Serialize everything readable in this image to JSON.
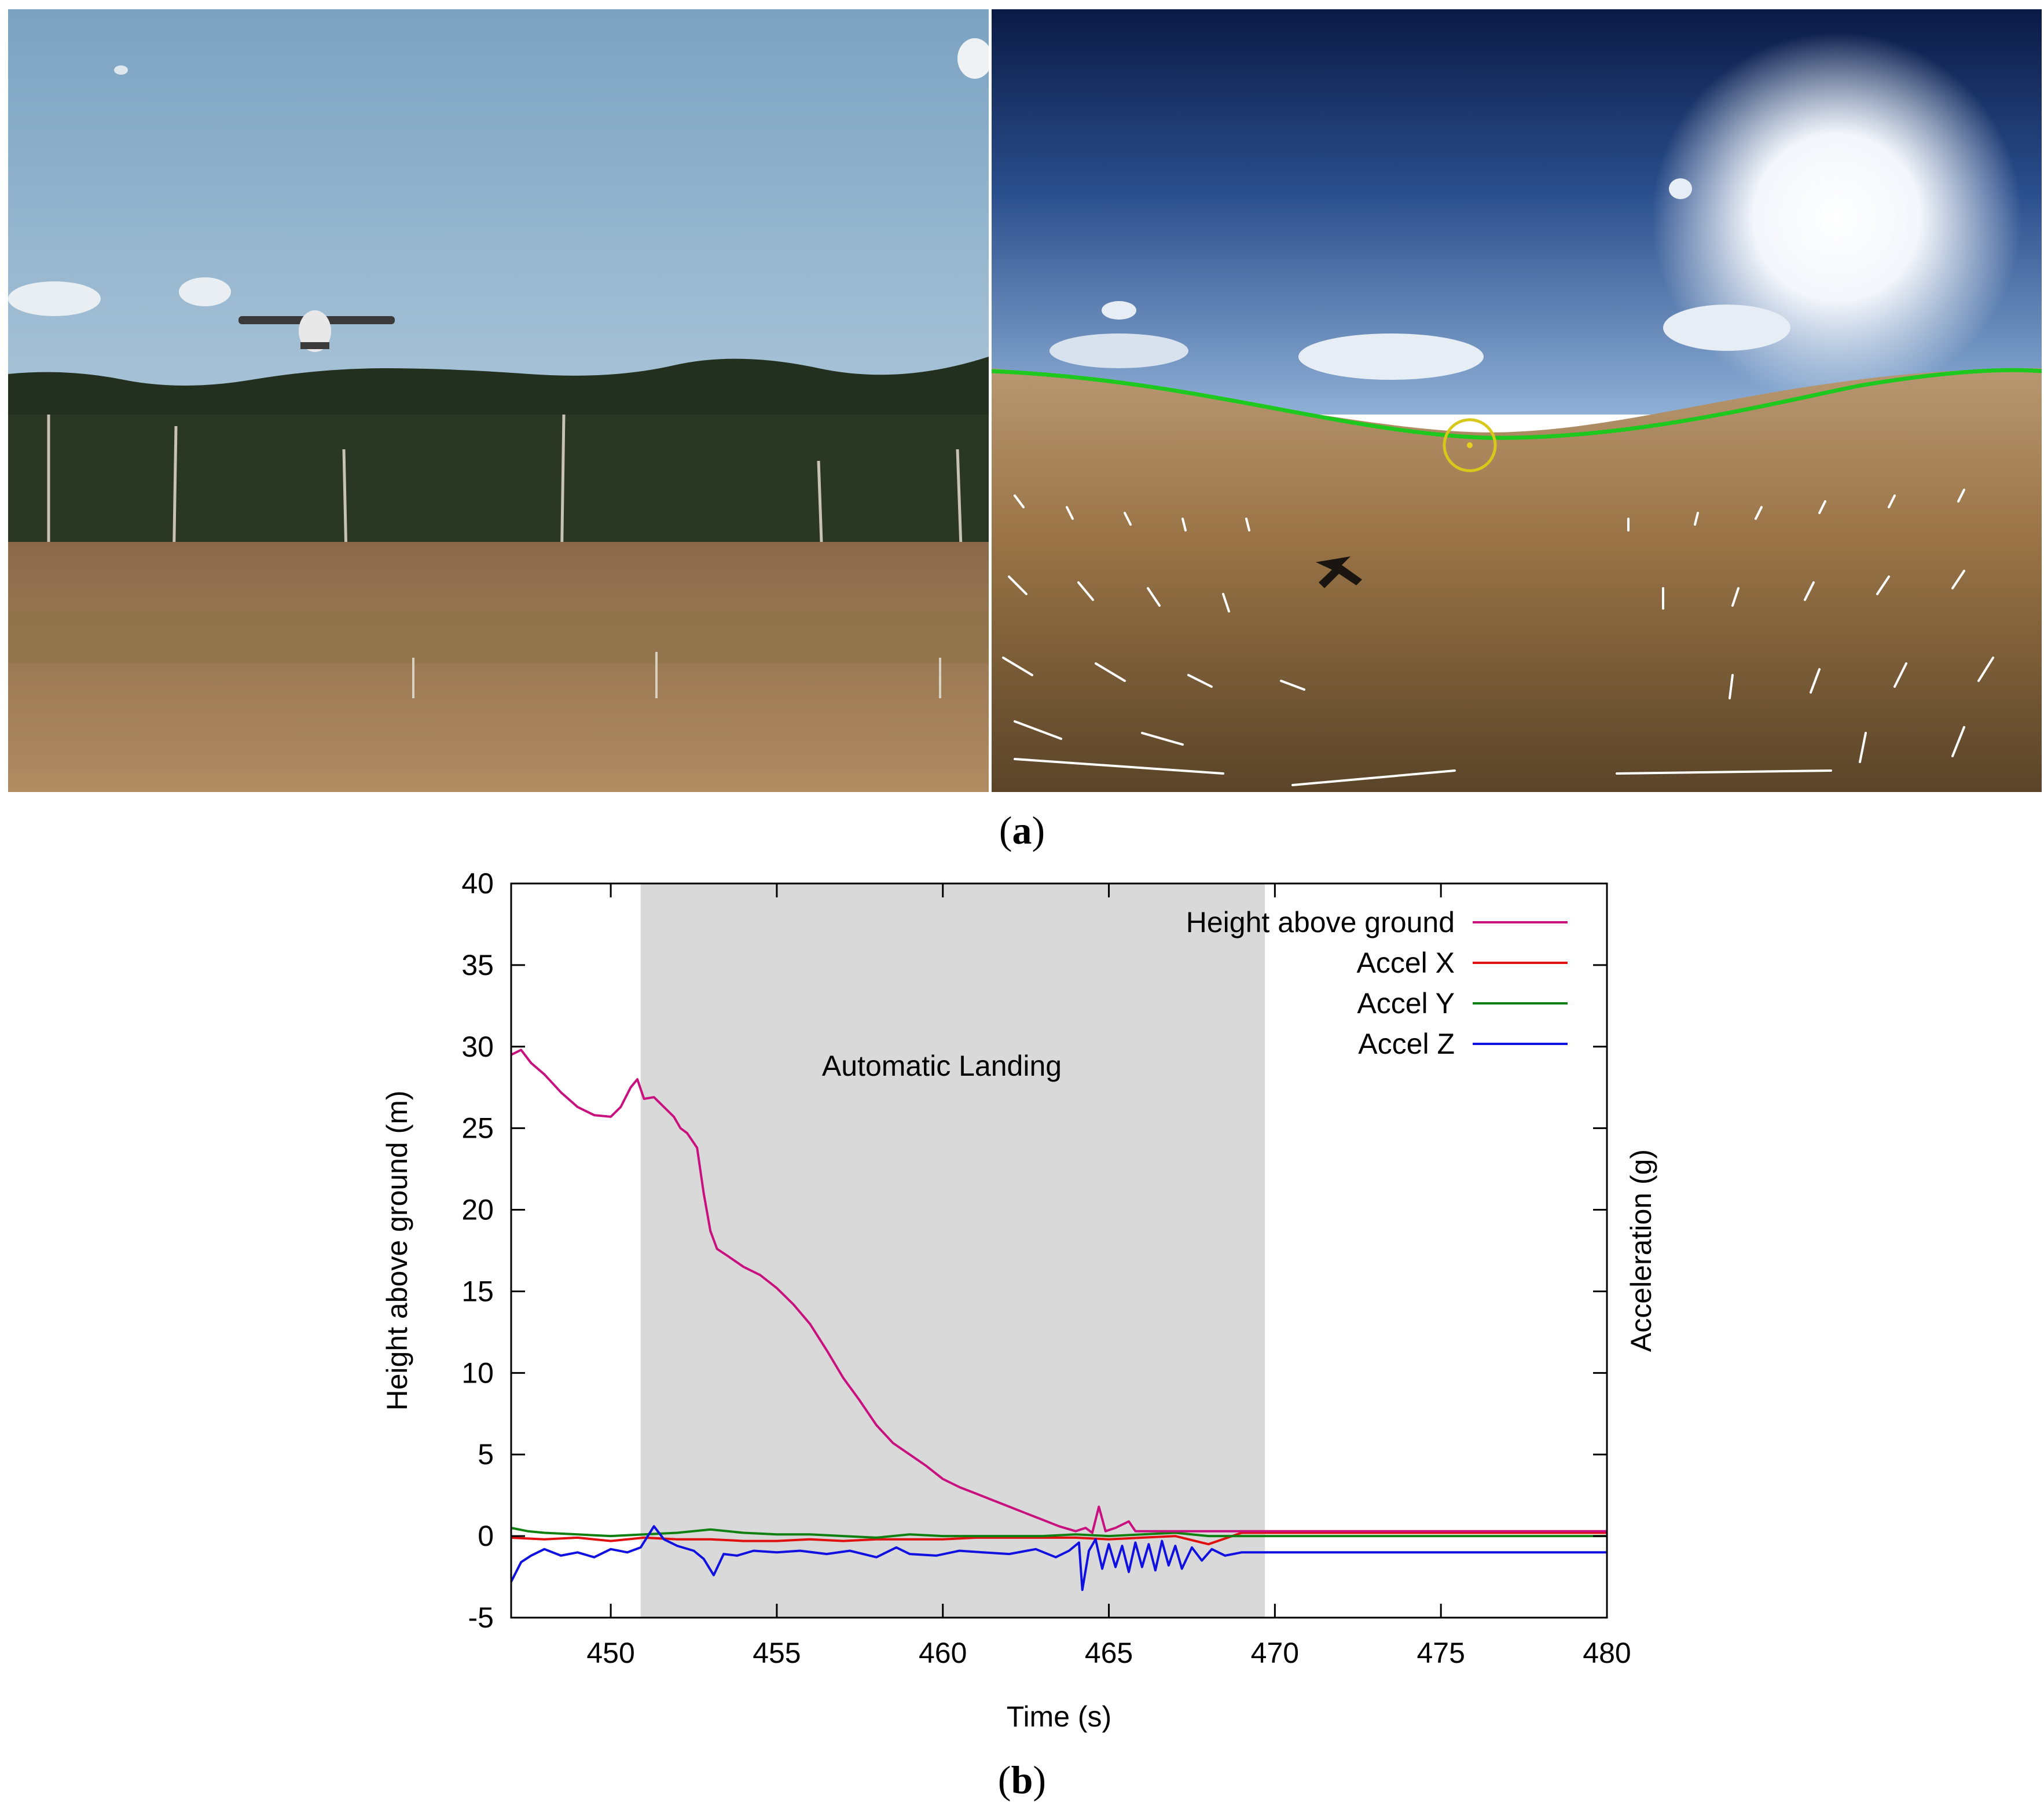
{
  "figure": {
    "panel_a": {
      "label_open": "(",
      "label_letter": "a",
      "label_close": ")",
      "left_photo": "ground-view-aircraft-approach",
      "right_photo": "onboard-omnidirectional-camera-view"
    },
    "panel_b": {
      "label_open": "(",
      "label_letter": "b",
      "label_close": ")"
    }
  },
  "colors": {
    "height": "#c8107e",
    "accel_x": "#e01010",
    "accel_y": "#108010",
    "accel_z": "#1010e0",
    "shade": "#d9d9d9",
    "horizon": "#1ec81e",
    "target_circle": "#d8c81c"
  },
  "chart_data": {
    "type": "line",
    "title": "",
    "xlabel": "Time (s)",
    "ylabel": "Height above ground (m)",
    "y2label": "Acceleration (g)",
    "xlim": [
      447,
      480
    ],
    "ylim": [
      -5,
      40
    ],
    "xticks": [
      450,
      455,
      460,
      465,
      470,
      475,
      480
    ],
    "yticks": [
      -5,
      0,
      5,
      10,
      15,
      20,
      25,
      30,
      35,
      40
    ],
    "legend_position": "top-right",
    "annotation": {
      "text": "Automatic Landing",
      "x_range": [
        450.9,
        469.7
      ]
    },
    "series": [
      {
        "name": "Height above ground",
        "color": "#c8107e",
        "points": [
          [
            447.0,
            29.5
          ],
          [
            447.3,
            29.8
          ],
          [
            447.6,
            29.0
          ],
          [
            448.0,
            28.3
          ],
          [
            448.5,
            27.2
          ],
          [
            449.0,
            26.3
          ],
          [
            449.5,
            25.8
          ],
          [
            450.0,
            25.7
          ],
          [
            450.3,
            26.3
          ],
          [
            450.6,
            27.5
          ],
          [
            450.8,
            28.0
          ],
          [
            451.0,
            26.8
          ],
          [
            451.3,
            26.9
          ],
          [
            451.6,
            26.3
          ],
          [
            451.9,
            25.7
          ],
          [
            452.1,
            25.0
          ],
          [
            452.3,
            24.7
          ],
          [
            452.6,
            23.8
          ],
          [
            452.8,
            21.0
          ],
          [
            453.0,
            18.7
          ],
          [
            453.2,
            17.6
          ],
          [
            453.5,
            17.2
          ],
          [
            454.0,
            16.5
          ],
          [
            454.5,
            16.0
          ],
          [
            455.0,
            15.2
          ],
          [
            455.5,
            14.2
          ],
          [
            456.0,
            13.0
          ],
          [
            456.5,
            11.4
          ],
          [
            457.0,
            9.7
          ],
          [
            457.5,
            8.3
          ],
          [
            458.0,
            6.8
          ],
          [
            458.5,
            5.7
          ],
          [
            459.0,
            5.0
          ],
          [
            459.5,
            4.3
          ],
          [
            460.0,
            3.5
          ],
          [
            460.5,
            3.0
          ],
          [
            461.0,
            2.6
          ],
          [
            461.5,
            2.2
          ],
          [
            462.0,
            1.8
          ],
          [
            462.5,
            1.4
          ],
          [
            463.0,
            1.0
          ],
          [
            463.5,
            0.6
          ],
          [
            464.0,
            0.3
          ],
          [
            464.3,
            0.5
          ],
          [
            464.5,
            0.2
          ],
          [
            464.7,
            1.8
          ],
          [
            464.9,
            0.3
          ],
          [
            465.2,
            0.5
          ],
          [
            465.6,
            0.9
          ],
          [
            465.8,
            0.3
          ],
          [
            466.5,
            0.3
          ],
          [
            467.5,
            0.3
          ],
          [
            469.0,
            0.3
          ],
          [
            470.0,
            0.3
          ],
          [
            475.0,
            0.3
          ],
          [
            480.0,
            0.3
          ]
        ]
      },
      {
        "name": "Accel X",
        "color": "#e01010",
        "points": [
          [
            447.0,
            -0.1
          ],
          [
            448.0,
            -0.2
          ],
          [
            449.0,
            -0.1
          ],
          [
            450.0,
            -0.3
          ],
          [
            451.0,
            -0.1
          ],
          [
            452.0,
            -0.2
          ],
          [
            453.0,
            -0.2
          ],
          [
            454.0,
            -0.3
          ],
          [
            455.0,
            -0.3
          ],
          [
            456.0,
            -0.2
          ],
          [
            457.0,
            -0.3
          ],
          [
            458.0,
            -0.2
          ],
          [
            459.0,
            -0.2
          ],
          [
            460.0,
            -0.2
          ],
          [
            461.0,
            -0.1
          ],
          [
            462.0,
            -0.1
          ],
          [
            463.0,
            -0.1
          ],
          [
            464.0,
            -0.1
          ],
          [
            465.0,
            -0.2
          ],
          [
            466.0,
            -0.1
          ],
          [
            467.0,
            0.0
          ],
          [
            468.0,
            -0.5
          ],
          [
            469.0,
            0.2
          ],
          [
            470.0,
            0.2
          ],
          [
            475.0,
            0.2
          ],
          [
            480.0,
            0.2
          ]
        ]
      },
      {
        "name": "Accel Y",
        "color": "#108010",
        "points": [
          [
            447.0,
            0.5
          ],
          [
            447.5,
            0.3
          ],
          [
            448.0,
            0.2
          ],
          [
            449.0,
            0.1
          ],
          [
            450.0,
            0.0
          ],
          [
            451.0,
            0.1
          ],
          [
            452.0,
            0.2
          ],
          [
            453.0,
            0.4
          ],
          [
            454.0,
            0.2
          ],
          [
            455.0,
            0.1
          ],
          [
            456.0,
            0.1
          ],
          [
            457.0,
            0.0
          ],
          [
            458.0,
            -0.1
          ],
          [
            459.0,
            0.1
          ],
          [
            460.0,
            0.0
          ],
          [
            461.0,
            0.0
          ],
          [
            462.0,
            0.0
          ],
          [
            463.0,
            0.0
          ],
          [
            464.0,
            0.1
          ],
          [
            465.0,
            0.0
          ],
          [
            466.0,
            0.1
          ],
          [
            467.0,
            0.2
          ],
          [
            468.0,
            0.0
          ],
          [
            469.0,
            0.0
          ],
          [
            470.0,
            0.0
          ],
          [
            475.0,
            0.0
          ],
          [
            480.0,
            0.0
          ]
        ]
      },
      {
        "name": "Accel Z",
        "color": "#1010e0",
        "points": [
          [
            447.0,
            -2.8
          ],
          [
            447.3,
            -1.6
          ],
          [
            447.6,
            -1.2
          ],
          [
            448.0,
            -0.8
          ],
          [
            448.5,
            -1.2
          ],
          [
            449.0,
            -1.0
          ],
          [
            449.5,
            -1.3
          ],
          [
            450.0,
            -0.8
          ],
          [
            450.5,
            -1.0
          ],
          [
            450.9,
            -0.7
          ],
          [
            451.3,
            0.6
          ],
          [
            451.6,
            -0.2
          ],
          [
            452.0,
            -0.6
          ],
          [
            452.5,
            -0.9
          ],
          [
            452.8,
            -1.4
          ],
          [
            453.1,
            -2.4
          ],
          [
            453.4,
            -1.1
          ],
          [
            453.8,
            -1.2
          ],
          [
            454.3,
            -0.9
          ],
          [
            455.0,
            -1.0
          ],
          [
            455.7,
            -0.9
          ],
          [
            456.5,
            -1.1
          ],
          [
            457.2,
            -0.9
          ],
          [
            458.0,
            -1.3
          ],
          [
            458.6,
            -0.7
          ],
          [
            459.0,
            -1.1
          ],
          [
            459.8,
            -1.2
          ],
          [
            460.5,
            -0.9
          ],
          [
            461.2,
            -1.0
          ],
          [
            462.0,
            -1.1
          ],
          [
            462.8,
            -0.8
          ],
          [
            463.4,
            -1.3
          ],
          [
            463.8,
            -0.9
          ],
          [
            464.1,
            -0.4
          ],
          [
            464.2,
            -3.3
          ],
          [
            464.4,
            -0.9
          ],
          [
            464.6,
            -0.2
          ],
          [
            464.8,
            -2.0
          ],
          [
            465.0,
            -0.5
          ],
          [
            465.2,
            -1.9
          ],
          [
            465.4,
            -0.6
          ],
          [
            465.6,
            -2.2
          ],
          [
            465.8,
            -0.4
          ],
          [
            466.0,
            -1.9
          ],
          [
            466.2,
            -0.5
          ],
          [
            466.4,
            -2.1
          ],
          [
            466.6,
            -0.3
          ],
          [
            466.8,
            -1.8
          ],
          [
            467.0,
            -0.6
          ],
          [
            467.2,
            -2.0
          ],
          [
            467.5,
            -0.7
          ],
          [
            467.8,
            -1.5
          ],
          [
            468.1,
            -0.8
          ],
          [
            468.5,
            -1.2
          ],
          [
            469.0,
            -1.0
          ],
          [
            470.0,
            -1.0
          ],
          [
            475.0,
            -1.0
          ],
          [
            480.0,
            -1.0
          ]
        ]
      }
    ]
  }
}
